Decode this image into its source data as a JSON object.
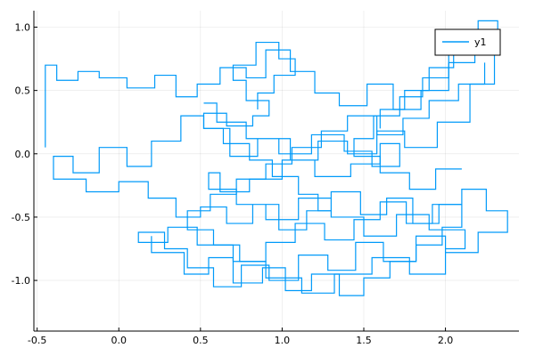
{
  "chart_data": {
    "type": "line",
    "title": "",
    "xlabel": "",
    "ylabel": "",
    "xlim": [
      -0.52,
      2.45
    ],
    "ylim": [
      -1.4,
      1.13
    ],
    "xticks": [
      -0.5,
      0.0,
      0.5,
      1.0,
      1.5,
      2.0
    ],
    "xtick_labels": [
      "-0.5",
      "0.0",
      "0.5",
      "1.0",
      "1.5",
      "2.0"
    ],
    "yticks": [
      -1.0,
      -0.5,
      0.0,
      0.5,
      1.0
    ],
    "ytick_labels": [
      "-1.0",
      "-0.5",
      "0.0",
      "0.5",
      "1.0"
    ],
    "grid": true,
    "legend_position": "top-right",
    "series": [
      {
        "name": "y1",
        "color": "#009af9",
        "x": [
          -0.45,
          -0.45,
          -0.38,
          -0.38,
          -0.25,
          -0.25,
          -0.12,
          -0.12,
          0.05,
          0.05,
          0.22,
          0.22,
          0.35,
          0.35,
          0.48,
          0.48,
          0.62,
          0.62,
          0.78,
          0.78,
          0.9,
          0.9,
          1.05,
          1.05,
          1.2,
          1.2,
          1.35,
          1.35,
          1.52,
          1.52,
          1.68,
          1.68,
          1.85,
          1.85,
          2.02,
          2.02,
          2.18,
          2.18,
          2.3,
          2.3,
          2.15,
          2.15,
          1.95,
          1.95,
          1.75,
          1.75,
          1.58,
          1.58,
          1.4,
          1.4,
          1.22,
          1.22,
          1.05,
          1.05,
          0.85,
          0.85,
          0.68,
          0.68,
          0.52,
          0.52,
          0.38,
          0.38,
          0.2,
          0.2,
          0.05,
          0.05,
          -0.12,
          -0.12,
          -0.28,
          -0.28,
          -0.4,
          -0.4,
          -0.2,
          -0.2,
          0.0,
          0.0,
          0.18,
          0.18,
          0.35,
          0.35,
          0.5,
          0.5,
          0.66,
          0.66,
          0.82,
          0.82,
          0.98,
          0.98,
          1.15,
          1.15,
          1.3,
          1.3,
          1.48,
          1.48,
          1.64,
          1.64,
          1.8,
          1.8,
          1.96,
          1.96,
          2.1,
          2.1,
          2.25,
          2.25,
          2.38,
          2.38,
          2.2,
          2.2,
          2.0,
          2.0,
          1.82,
          1.82,
          1.62,
          1.62,
          1.45,
          1.45,
          1.28,
          1.28,
          1.1,
          1.1,
          0.92,
          0.92,
          0.75,
          0.75,
          0.58,
          0.58,
          0.42,
          0.42,
          0.28,
          0.28,
          0.12,
          0.12,
          0.3,
          0.3,
          0.48,
          0.48,
          0.7,
          0.7,
          0.9,
          0.9,
          1.12,
          1.12,
          1.32,
          1.32,
          1.55,
          1.55,
          1.78,
          1.78,
          2.0,
          2.0,
          2.12,
          2.12,
          1.9,
          1.9,
          1.7,
          1.7,
          1.5,
          1.5,
          1.3,
          1.3,
          1.1,
          1.1,
          0.9,
          0.9,
          0.72,
          0.72,
          0.55,
          0.55,
          0.62,
          0.62,
          0.8,
          0.8,
          1.0,
          1.0,
          1.2,
          1.2,
          1.42,
          1.42,
          1.6,
          1.6,
          1.72,
          1.72,
          1.55,
          1.55,
          1.38,
          1.38,
          1.18,
          1.18,
          0.98,
          0.98,
          0.78,
          0.78,
          0.6,
          0.6,
          0.52
        ],
        "y": [
          0.05,
          0.7,
          0.7,
          0.58,
          0.58,
          0.65,
          0.65,
          0.6,
          0.6,
          0.52,
          0.52,
          0.62,
          0.62,
          0.45,
          0.45,
          0.55,
          0.55,
          0.68,
          0.68,
          0.6,
          0.6,
          0.82,
          0.82,
          0.65,
          0.65,
          0.48,
          0.48,
          0.38,
          0.38,
          0.55,
          0.55,
          0.35,
          0.35,
          0.5,
          0.5,
          0.72,
          0.72,
          0.9,
          0.9,
          0.55,
          0.55,
          0.25,
          0.25,
          0.05,
          0.05,
          0.18,
          0.18,
          0.0,
          0.0,
          0.1,
          0.1,
          -0.05,
          -0.05,
          0.12,
          0.12,
          -0.02,
          -0.02,
          0.2,
          0.2,
          0.3,
          0.3,
          0.1,
          0.1,
          -0.1,
          -0.1,
          0.05,
          0.05,
          -0.15,
          -0.15,
          -0.02,
          -0.02,
          -0.2,
          -0.2,
          -0.3,
          -0.3,
          -0.22,
          -0.22,
          -0.35,
          -0.35,
          -0.5,
          -0.5,
          -0.42,
          -0.42,
          -0.55,
          -0.55,
          -0.4,
          -0.4,
          -0.6,
          -0.6,
          -0.45,
          -0.45,
          -0.3,
          -0.3,
          -0.48,
          -0.48,
          -0.35,
          -0.35,
          -0.55,
          -0.55,
          -0.4,
          -0.4,
          -0.28,
          -0.28,
          -0.45,
          -0.45,
          -0.62,
          -0.62,
          -0.78,
          -0.78,
          -0.65,
          -0.65,
          -0.85,
          -0.85,
          -0.7,
          -0.7,
          -0.92,
          -0.92,
          -0.8,
          -0.8,
          -1.0,
          -1.0,
          -0.88,
          -0.88,
          -1.05,
          -1.05,
          -0.9,
          -0.9,
          -0.75,
          -0.75,
          -0.62,
          -0.62,
          -0.7,
          -0.7,
          -0.58,
          -0.58,
          -0.72,
          -0.72,
          -0.85,
          -0.85,
          -0.98,
          -0.98,
          -1.1,
          -1.1,
          -0.95,
          -0.95,
          -0.82,
          -0.82,
          -0.95,
          -0.95,
          -0.75,
          -0.75,
          -0.6,
          -0.6,
          -0.48,
          -0.48,
          -0.65,
          -0.65,
          -0.5,
          -0.5,
          -0.35,
          -0.35,
          -0.52,
          -0.52,
          -0.4,
          -0.4,
          -0.28,
          -0.28,
          -0.15,
          -0.15,
          -0.3,
          -0.3,
          -0.2,
          -0.2,
          -0.05,
          -0.05,
          -0.18,
          -0.18,
          -0.08,
          -0.08,
          0.08,
          0.08,
          -0.1,
          -0.1,
          0.02,
          0.02,
          0.15,
          0.15,
          0.0,
          0.0,
          0.12,
          0.12,
          0.25,
          0.25,
          0.4,
          0.4
        ]
      },
      {
        "name": "",
        "color": "#009af9",
        "x": [
          0.2,
          0.2,
          0.4,
          0.4,
          0.55,
          0.55,
          0.7,
          0.7,
          0.88,
          0.88,
          1.02,
          1.02,
          1.18,
          1.18,
          1.35,
          1.35,
          1.5,
          1.5,
          1.66,
          1.66,
          1.82,
          1.82,
          1.98,
          1.98,
          2.1,
          2.1,
          1.92,
          1.92,
          1.76,
          1.76,
          1.6,
          1.6,
          1.44,
          1.44,
          1.26,
          1.26,
          1.08,
          1.08,
          0.9,
          0.9,
          0.74,
          0.74,
          0.58,
          0.58,
          0.42,
          0.42,
          0.56,
          0.56,
          0.72,
          0.72,
          0.9,
          0.9,
          1.06,
          1.06,
          1.24,
          1.24,
          1.4,
          1.4,
          1.58,
          1.58,
          1.74,
          1.74,
          1.9,
          1.9,
          2.08,
          2.08,
          2.24,
          2.24
        ],
        "y": [
          -0.65,
          -0.78,
          -0.78,
          -0.95,
          -0.95,
          -0.82,
          -0.82,
          -1.02,
          -1.02,
          -0.9,
          -0.9,
          -1.08,
          -1.08,
          -0.95,
          -0.95,
          -1.12,
          -1.12,
          -0.98,
          -0.98,
          -0.85,
          -0.85,
          -0.72,
          -0.72,
          -0.58,
          -0.58,
          -0.4,
          -0.4,
          -0.55,
          -0.55,
          -0.38,
          -0.38,
          -0.52,
          -0.52,
          -0.68,
          -0.68,
          -0.55,
          -0.55,
          -0.7,
          -0.7,
          -0.85,
          -0.85,
          -0.72,
          -0.72,
          -0.6,
          -0.6,
          -0.45,
          -0.45,
          -0.32,
          -0.32,
          -0.2,
          -0.2,
          -0.08,
          -0.08,
          0.05,
          0.05,
          0.18,
          0.18,
          0.3,
          0.3,
          0.15,
          0.15,
          0.28,
          0.28,
          0.42,
          0.42,
          0.55,
          0.55,
          0.72
        ]
      },
      {
        "name": "",
        "color": "#009af9",
        "x": [
          0.85,
          0.85,
          0.95,
          0.95,
          1.08,
          1.08,
          0.98,
          0.98,
          0.84,
          0.84,
          0.7,
          0.7,
          0.78,
          0.78,
          0.92,
          0.92,
          0.82,
          0.82,
          0.66,
          0.66,
          0.52,
          0.52,
          0.64,
          0.64,
          0.8,
          0.8,
          0.94,
          0.94,
          1.1,
          1.1,
          1.22,
          1.22,
          1.3
        ],
        "y": [
          0.35,
          0.48,
          0.48,
          0.62,
          0.62,
          0.75,
          0.75,
          0.88,
          0.88,
          0.7,
          0.7,
          0.58,
          0.58,
          0.42,
          0.42,
          0.3,
          0.3,
          0.22,
          0.22,
          0.32,
          0.32,
          0.2,
          0.2,
          0.08,
          0.08,
          -0.05,
          -0.05,
          -0.18,
          -0.18,
          -0.32,
          -0.32,
          -0.45,
          -0.45
        ]
      },
      {
        "name": "",
        "color": "#009af9",
        "x": [
          1.6,
          1.6,
          1.75,
          1.75,
          1.9,
          1.9,
          2.05,
          2.05,
          2.2,
          2.2,
          2.32,
          2.32,
          2.18,
          2.18,
          2.02,
          2.02,
          1.86,
          1.86,
          1.72,
          1.72,
          1.56,
          1.56,
          1.44,
          1.44,
          1.6,
          1.6,
          1.78,
          1.78,
          1.94,
          1.94,
          2.1
        ],
        "y": [
          0.2,
          0.35,
          0.35,
          0.5,
          0.5,
          0.68,
          0.68,
          0.85,
          0.85,
          1.05,
          1.05,
          0.92,
          0.92,
          0.78,
          0.78,
          0.6,
          0.6,
          0.45,
          0.45,
          0.3,
          0.3,
          0.12,
          0.12,
          -0.02,
          -0.02,
          -0.15,
          -0.15,
          -0.28,
          -0.28,
          -0.12,
          -0.12
        ]
      }
    ]
  }
}
